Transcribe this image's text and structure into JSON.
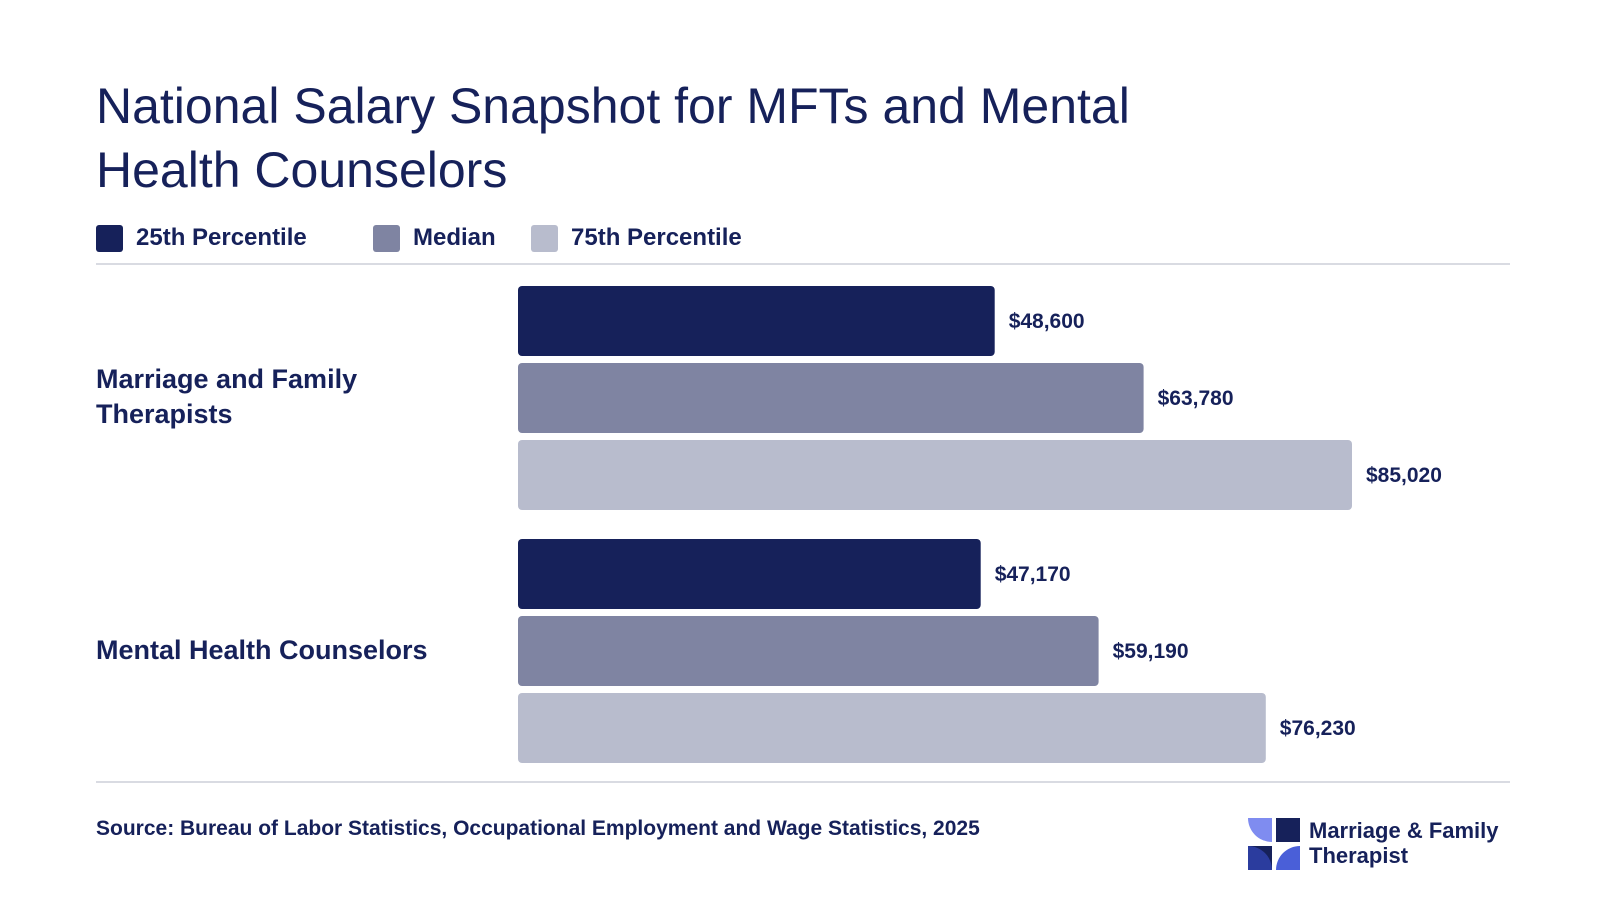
{
  "title": "National Salary Snapshot for MFTs and Mental Health Counselors",
  "legend": [
    {
      "label": "25th Percentile",
      "color": "#16215a"
    },
    {
      "label": "Median",
      "color": "#7f84a2"
    },
    {
      "label": "75th Percentile",
      "color": "#b8bccd"
    }
  ],
  "chart_data": {
    "type": "bar",
    "orientation": "horizontal",
    "categories": [
      "Marriage and Family Therapists",
      "Mental Health Counselors"
    ],
    "series": [
      {
        "name": "25th Percentile",
        "values": [
          48600,
          47170
        ],
        "labels": [
          "$48,600",
          "$47,170"
        ],
        "color": "#16215a"
      },
      {
        "name": "Median",
        "values": [
          63780,
          59190
        ],
        "labels": [
          "$63,780",
          "$59,190"
        ],
        "color": "#7f84a2"
      },
      {
        "name": "75th Percentile",
        "values": [
          85020,
          76230
        ],
        "labels": [
          "$85,020",
          "$76,230"
        ],
        "color": "#b8bccd"
      }
    ],
    "xlim": [
      0,
      85020
    ],
    "grid": false,
    "legend_position": "top-left"
  },
  "source": "Source: Bureau of Labor Statistics, Occupational Employment and Wage Statistics, 2025",
  "logo": {
    "line1": "Marriage & Family",
    "line2": "Therapist",
    "icon": "pinwheel-logo-icon"
  }
}
